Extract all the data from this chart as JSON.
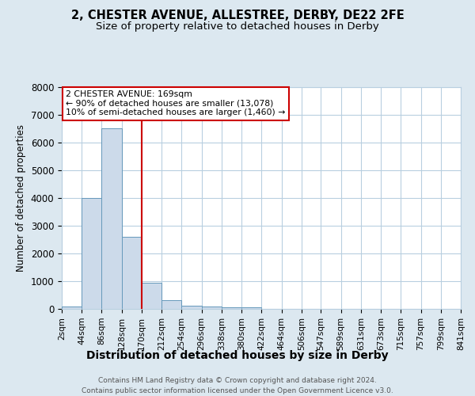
{
  "title1": "2, CHESTER AVENUE, ALLESTREE, DERBY, DE22 2FE",
  "title2": "Size of property relative to detached houses in Derby",
  "xlabel": "Distribution of detached houses by size in Derby",
  "ylabel": "Number of detached properties",
  "bar_edges": [
    2,
    44,
    86,
    128,
    170,
    212,
    254,
    296,
    338,
    380,
    422,
    464,
    506,
    547,
    589,
    631,
    673,
    715,
    757,
    799,
    841
  ],
  "bar_heights": [
    100,
    4000,
    6500,
    2600,
    950,
    325,
    125,
    75,
    50,
    60,
    0,
    0,
    0,
    0,
    0,
    0,
    0,
    0,
    0,
    0
  ],
  "bar_color": "#ccdaea",
  "bar_edgecolor": "#6699bb",
  "redline_x": 170,
  "annotation_title": "2 CHESTER AVENUE: 169sqm",
  "annotation_line1": "← 90% of detached houses are smaller (13,078)",
  "annotation_line2": "10% of semi-detached houses are larger (1,460) →",
  "annotation_box_color": "#ffffff",
  "annotation_box_edgecolor": "#cc0000",
  "redline_color": "#cc0000",
  "ylim": [
    0,
    8000
  ],
  "footnote1": "Contains HM Land Registry data © Crown copyright and database right 2024.",
  "footnote2": "Contains public sector information licensed under the Open Government Licence v3.0.",
  "background_color": "#dce8f0",
  "plot_background": "#ffffff",
  "grid_color": "#b8cfe0",
  "title1_fontsize": 10.5,
  "title2_fontsize": 9.5,
  "xlabel_fontsize": 10,
  "ylabel_fontsize": 8.5,
  "tick_fontsize": 7.5,
  "tick_labels": [
    "2sqm",
    "44sqm",
    "86sqm",
    "128sqm",
    "170sqm",
    "212sqm",
    "254sqm",
    "296sqm",
    "338sqm",
    "380sqm",
    "422sqm",
    "464sqm",
    "506sqm",
    "547sqm",
    "589sqm",
    "631sqm",
    "673sqm",
    "715sqm",
    "757sqm",
    "799sqm",
    "841sqm"
  ]
}
